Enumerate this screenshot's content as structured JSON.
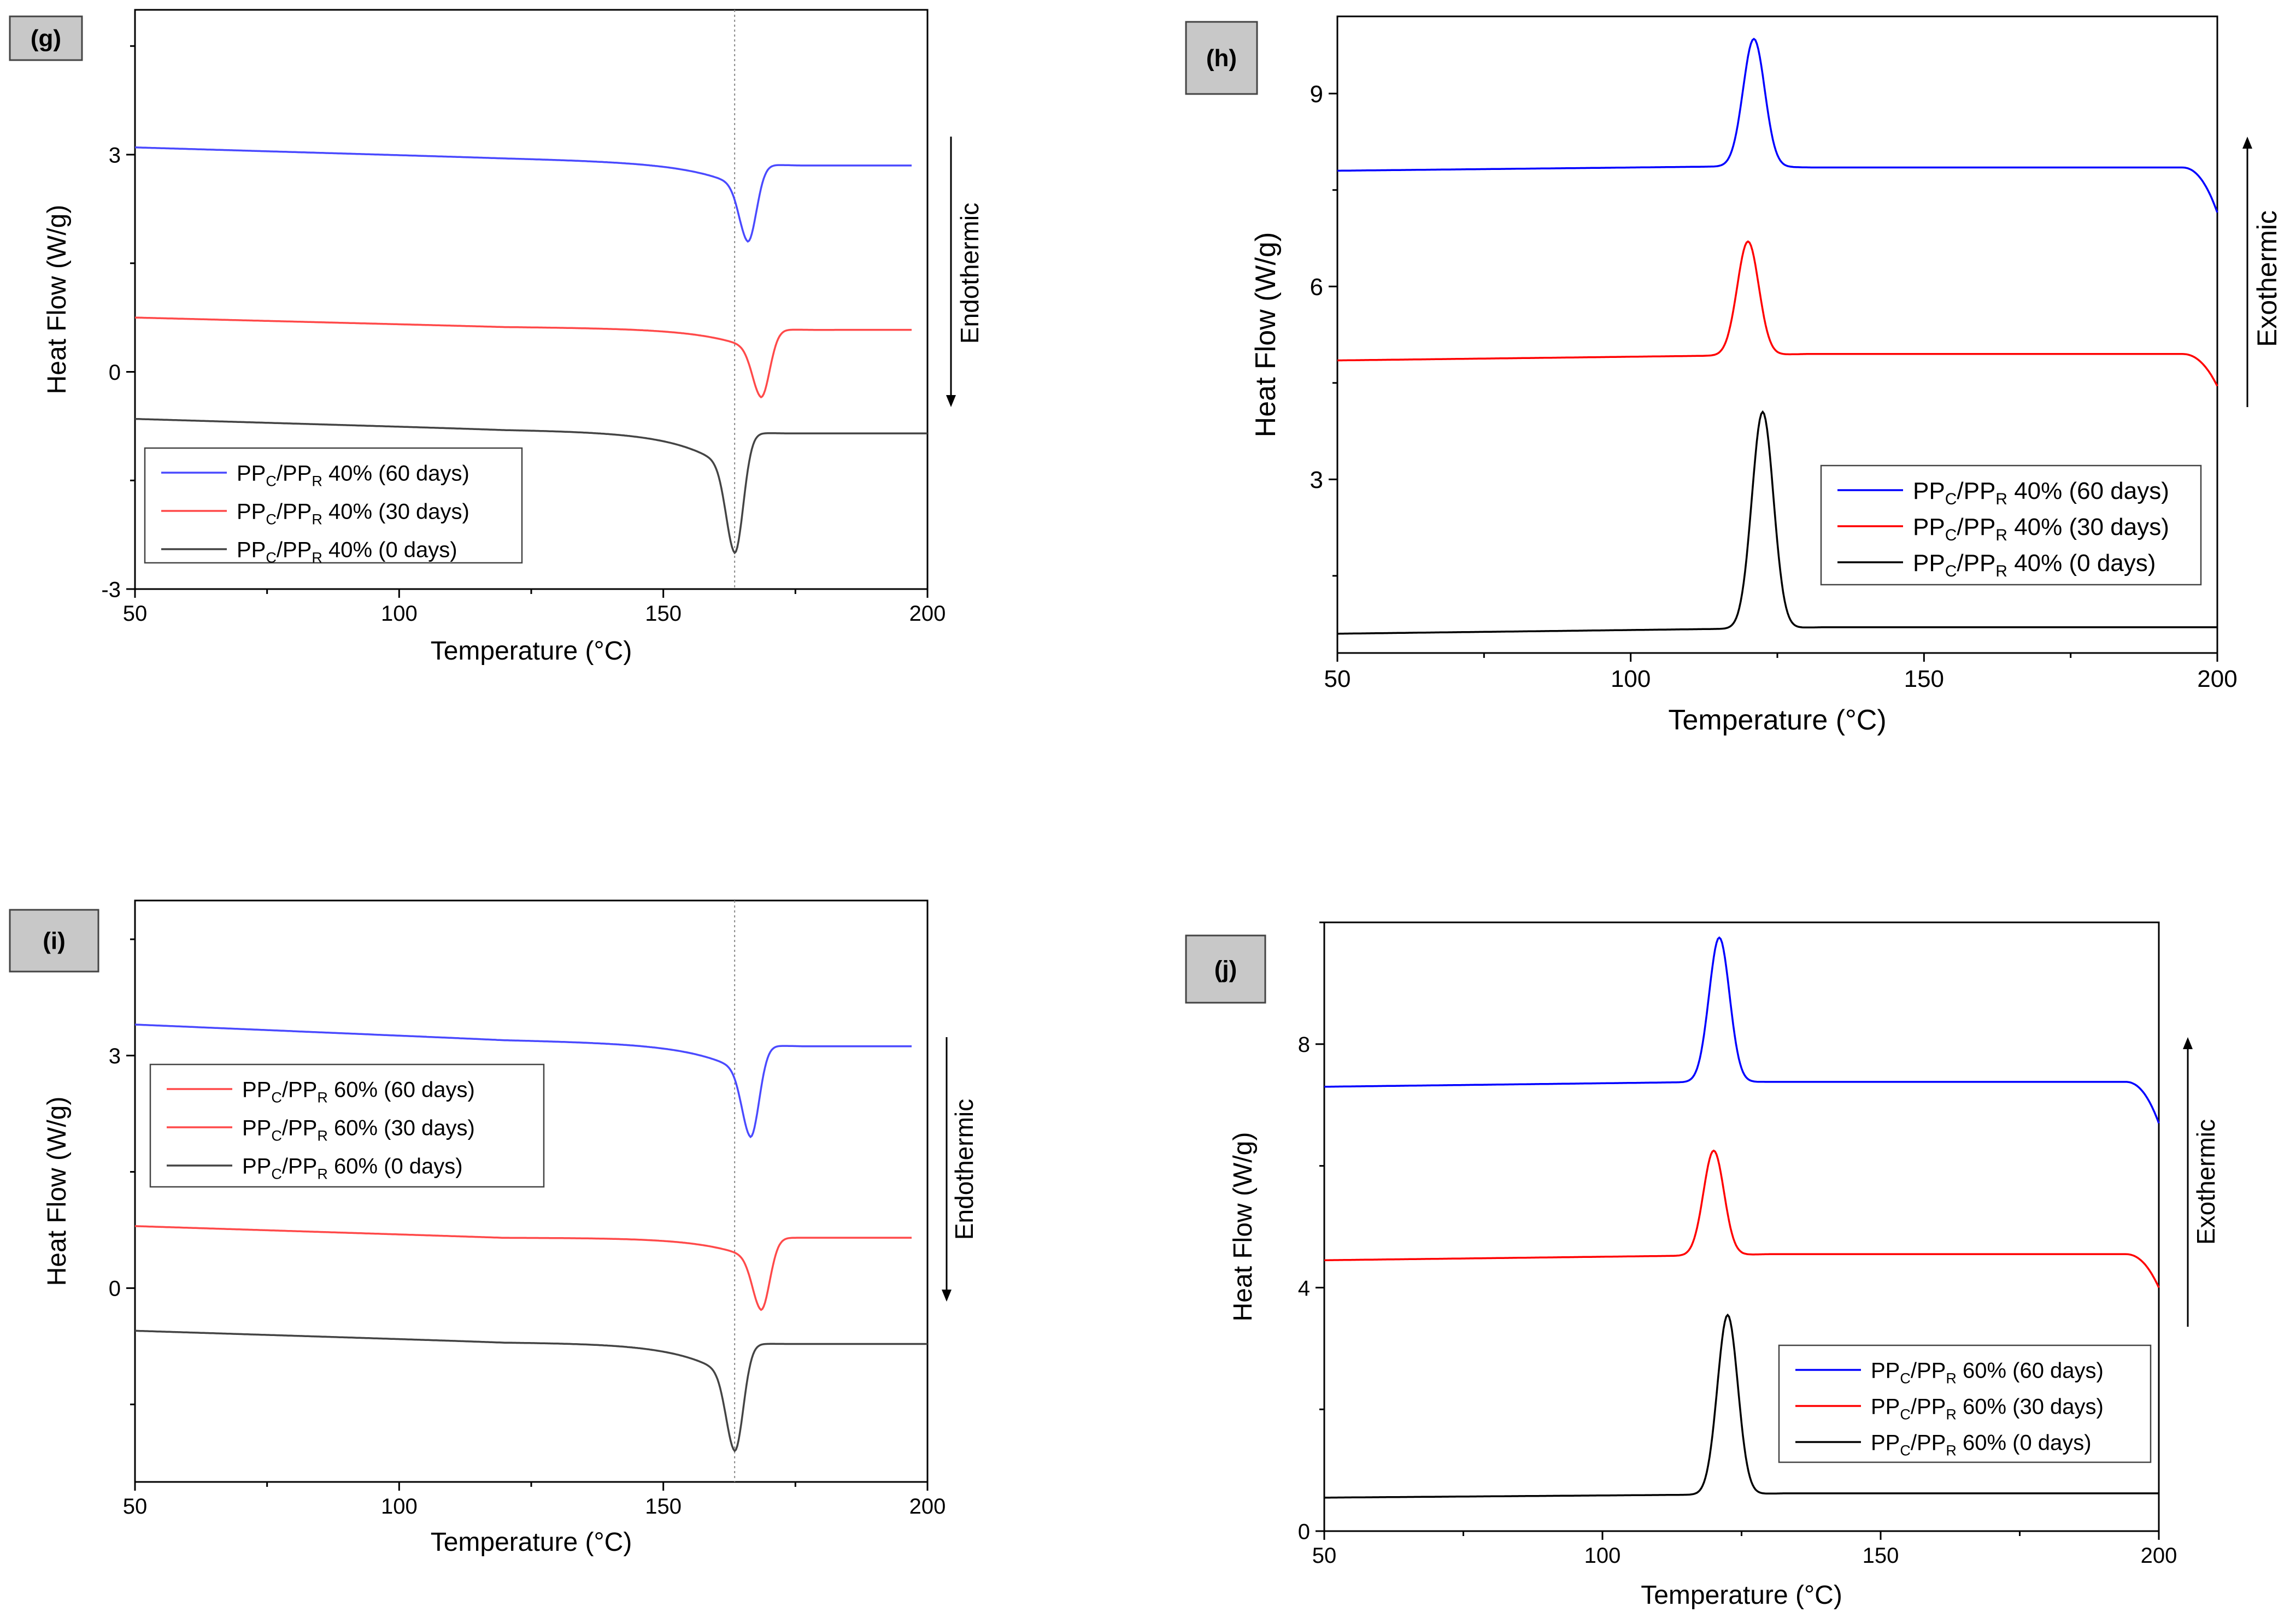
{
  "chart_data": [
    {
      "type": "line",
      "panel_label": "(g)",
      "xlabel": "Temperature (°C)",
      "ylabel": "Heat Flow (W/g)",
      "xlim": [
        50,
        200
      ],
      "ylim": [
        -3,
        5
      ],
      "xticks": [
        50,
        100,
        150,
        200
      ],
      "yticks": [
        -3,
        0,
        3
      ],
      "reference_line_x": 163.5,
      "annotation": {
        "text": "Endothermic",
        "direction": "down"
      },
      "legend_position": "bottom-left",
      "series": [
        {
          "name": "PPC/PPR 40% (60 days)",
          "legend_text": "40% (60 days)",
          "color": "#4a4aff",
          "peak_type": "endo",
          "baseline_left": 3.1,
          "baseline_mid": 2.95,
          "baseline_right": 2.85,
          "peak_x": 166,
          "peak_y": 1.8,
          "x_end": 197
        },
        {
          "name": "PPC/PPR 40% (30 days)",
          "legend_text": "40% (30 days)",
          "color": "#ff4a4a",
          "peak_type": "endo",
          "baseline_left": 0.75,
          "baseline_mid": 0.62,
          "baseline_right": 0.58,
          "peak_x": 168.5,
          "peak_y": -0.35,
          "x_end": 197
        },
        {
          "name": "PPC/PPR 40% (0 days)",
          "legend_text": "40% (0 days)",
          "color": "#444444",
          "peak_type": "endo",
          "baseline_left": -0.65,
          "baseline_mid": -0.8,
          "baseline_right": -0.85,
          "peak_x": 163.5,
          "peak_y": -2.5,
          "x_end": 200
        }
      ]
    },
    {
      "type": "line",
      "panel_label": "(h)",
      "xlabel": "Temperature (°C)",
      "ylabel": "Heat Flow (W/g)",
      "xlim": [
        50,
        200
      ],
      "ylim": [
        0.3,
        10.2
      ],
      "xticks": [
        50,
        100,
        150,
        200
      ],
      "yticks": [
        3,
        6,
        9
      ],
      "annotation": {
        "text": "Exothermic",
        "direction": "up"
      },
      "legend_position": "bottom-right",
      "series": [
        {
          "name": "PPC/PPR 40% (60 days)",
          "legend_text": "40% (60 days)",
          "color": "#0000ff",
          "peak_type": "exo",
          "baseline_left": 7.8,
          "baseline_mid": 7.87,
          "baseline_right": 7.85,
          "peak_x": 121,
          "peak_y": 9.85,
          "end_drop_y": 7.15
        },
        {
          "name": "PPC/PPR 40% (30 days)",
          "legend_text": "40% (30 days)",
          "color": "#ff0000",
          "peak_type": "exo",
          "baseline_left": 4.85,
          "baseline_mid": 4.93,
          "baseline_right": 4.95,
          "peak_x": 120,
          "peak_y": 6.7,
          "end_drop_y": 4.45
        },
        {
          "name": "PPC/PPR 40% (0 days)",
          "legend_text": "40% (0 days)",
          "color": "#000000",
          "peak_type": "exo",
          "baseline_left": 0.6,
          "baseline_mid": 0.68,
          "baseline_right": 0.7,
          "peak_x": 122.5,
          "peak_y": 4.05
        }
      ]
    },
    {
      "type": "line",
      "panel_label": "(i)",
      "xlabel": "Temperature (°C)",
      "ylabel": "Heat Flow (W/g)",
      "xlim": [
        50,
        200
      ],
      "ylim": [
        -2.5,
        5
      ],
      "xticks": [
        50,
        100,
        150,
        200
      ],
      "yticks": [
        0,
        3
      ],
      "reference_line_x": 163.5,
      "annotation": {
        "text": "Endothermic",
        "direction": "down"
      },
      "legend_position": "top-left",
      "series": [
        {
          "name": "PPC/PPR 60% (60 days)",
          "legend_text": "60% (60 days)",
          "color": "#4a4aff",
          "legend_color": "#ff4a4a",
          "peak_type": "endo",
          "baseline_left": 3.4,
          "baseline_mid": 3.2,
          "baseline_right": 3.12,
          "peak_x": 166.5,
          "peak_y": 1.95,
          "x_end": 197
        },
        {
          "name": "PPC/PPR 60% (30 days)",
          "legend_text": "60% (30 days)",
          "color": "#ff4a4a",
          "peak_type": "endo",
          "baseline_left": 0.8,
          "baseline_mid": 0.65,
          "baseline_right": 0.65,
          "peak_x": 168.5,
          "peak_y": -0.28,
          "x_end": 197
        },
        {
          "name": "PPC/PPR 60% (0 days)",
          "legend_text": "60% (0 days)",
          "color": "#444444",
          "peak_type": "endo",
          "baseline_left": -0.55,
          "baseline_mid": -0.7,
          "baseline_right": -0.72,
          "peak_x": 163.5,
          "peak_y": -2.1,
          "x_end": 200
        }
      ]
    },
    {
      "type": "line",
      "panel_label": "(j)",
      "xlabel": "Temperature (°C)",
      "ylabel": "Heat Flow (W/g)",
      "xlim": [
        50,
        200
      ],
      "ylim": [
        0,
        10
      ],
      "xticks": [
        50,
        100,
        150,
        200
      ],
      "yticks": [
        0,
        4,
        8
      ],
      "annotation": {
        "text": "Exothermic",
        "direction": "up"
      },
      "legend_position": "bottom-right",
      "series": [
        {
          "name": "PPC/PPR 60% (60 days)",
          "legend_text": "60% (60 days)",
          "color": "#0000ff",
          "peak_type": "exo",
          "baseline_left": 7.3,
          "baseline_mid": 7.38,
          "baseline_right": 7.38,
          "peak_x": 121,
          "peak_y": 9.75,
          "end_drop_y": 6.7
        },
        {
          "name": "PPC/PPR 60% (30 days)",
          "legend_text": "60% (30 days)",
          "color": "#ff0000",
          "peak_type": "exo",
          "baseline_left": 4.45,
          "baseline_mid": 4.53,
          "baseline_right": 4.55,
          "peak_x": 120,
          "peak_y": 6.25,
          "end_drop_y": 4.0
        },
        {
          "name": "PPC/PPR 60% (0 days)",
          "legend_text": "60% (0 days)",
          "color": "#000000",
          "peak_type": "exo",
          "baseline_left": 0.55,
          "baseline_mid": 0.6,
          "baseline_right": 0.62,
          "peak_x": 122.5,
          "peak_y": 3.55
        }
      ]
    }
  ]
}
